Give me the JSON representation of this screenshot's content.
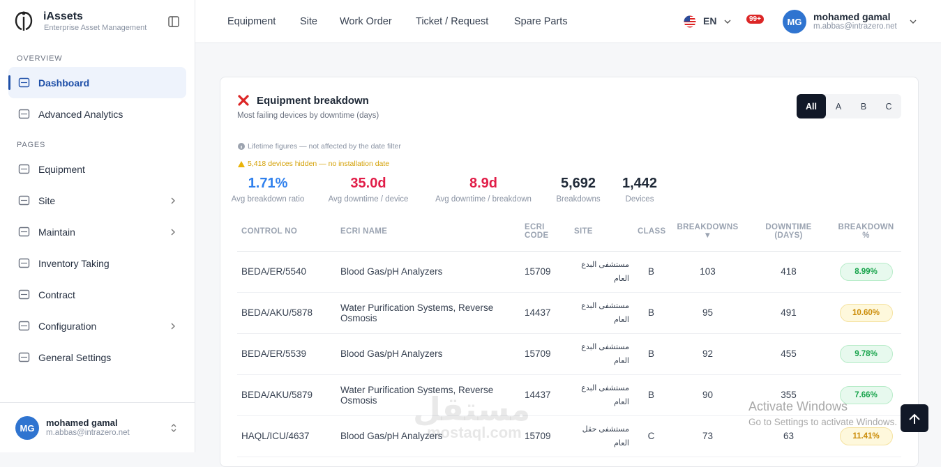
{
  "sidebar": {
    "brand": "iAssets",
    "tagline": "Enterprise Asset Management",
    "sections": [
      {
        "title": "OVERVIEW",
        "items": [
          {
            "label": "Dashboard",
            "active": true
          },
          {
            "label": "Advanced Analytics"
          }
        ]
      },
      {
        "title": "PAGES",
        "items": [
          {
            "label": "Equipment"
          },
          {
            "label": "Site",
            "has_children": true
          },
          {
            "label": "Maintain",
            "has_children": true
          },
          {
            "label": "Inventory Taking"
          },
          {
            "label": "Contract"
          },
          {
            "label": "Configuration",
            "has_children": true
          },
          {
            "label": "General Settings"
          }
        ]
      }
    ],
    "user": {
      "initials": "MG",
      "name": "mohamed gamal",
      "email": "m.abbas@intrazero.net"
    }
  },
  "topnav": {
    "links": [
      "Equipment",
      "Site",
      "Work Order",
      "Ticket / Request",
      "Spare Parts"
    ],
    "language": "EN",
    "notifications": "99+",
    "user": {
      "initials": "MG",
      "name": "mohamed gamal",
      "email": "m.abbas@intrazero.net"
    }
  },
  "card": {
    "title": "Equipment breakdown",
    "subtitle": "Most failing devices by downtime (days)",
    "filters": [
      "All",
      "A",
      "B",
      "C"
    ],
    "notes": [
      {
        "text": "Lifetime figures — not affected by the date filter",
        "tone": "info"
      },
      {
        "text": "5,418 devices hidden — no installation date",
        "tone": "warning"
      }
    ],
    "stats": [
      {
        "value": "1.71%",
        "label": "Avg breakdown ratio",
        "color": "#2f80ed"
      },
      {
        "value": "35.0d",
        "label": "Avg downtime / device",
        "color": "#e11d48"
      },
      {
        "value": "8.9d",
        "label": "Avg downtime / breakdown",
        "color": "#e11d48"
      },
      {
        "value": "5,692",
        "label": "Breakdowns",
        "color": "#1f2937"
      },
      {
        "value": "1,442",
        "label": "Devices",
        "color": "#1f2937"
      }
    ],
    "table": {
      "columns": [
        "CONTROL NO",
        "ECRI NAME",
        "ECRI CODE",
        "SITE",
        "CLASS",
        "BREAKDOWNS ▼",
        "DOWNTIME (DAYS)",
        "BREAKDOWN %"
      ],
      "rows": [
        [
          "BEDA/ER/5540",
          "Blood Gas/pH Analyzers",
          "15709",
          "مستشفى البدع العام",
          "B",
          "103",
          "418",
          "8.99%"
        ],
        [
          "BEDA/AKU/5878",
          "Water Purification Systems, Reverse Osmosis",
          "14437",
          "مستشفى البدع العام",
          "B",
          "95",
          "491",
          "10.60%"
        ],
        [
          "BEDA/ER/5539",
          "Blood Gas/pH Analyzers",
          "15709",
          "مستشفى البدع العام",
          "B",
          "92",
          "455",
          "9.78%"
        ],
        [
          "BEDA/AKU/5879",
          "Water Purification Systems, Reverse Osmosis",
          "14437",
          "مستشفى البدع العام",
          "B",
          "90",
          "355",
          "7.66%"
        ],
        [
          "HAQL/ICU/4637",
          "Blood Gas/pH Analyzers",
          "15709",
          "مستشفى حقل العام",
          "C",
          "73",
          "63",
          "11.41%"
        ]
      ],
      "badge_tones": [
        "green",
        "yellow",
        "green",
        "green",
        "yellow"
      ]
    }
  },
  "overlay": {
    "activation_title": "Activate Windows",
    "activation_text": "Go to Settings to activate Windows.",
    "watermark": "مستقل",
    "watermark_site": "mostaql.com"
  }
}
